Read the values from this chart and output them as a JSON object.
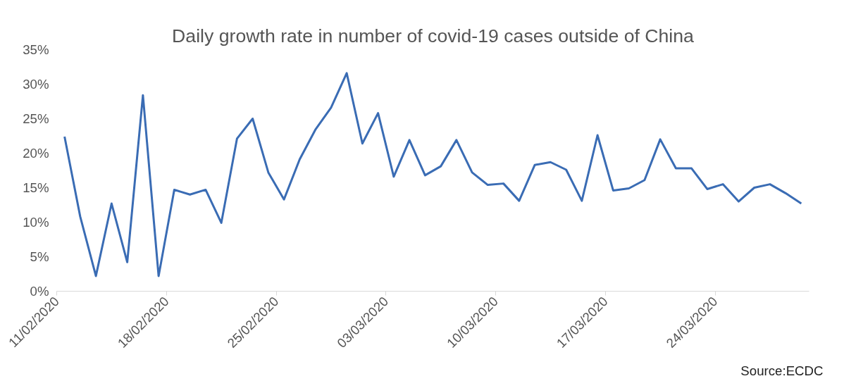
{
  "chart_data": {
    "type": "line",
    "title": "Daily growth rate in number of covid-19 cases outside of China",
    "x": [
      "2020-02-11T12:00",
      "2020-02-12T12:00",
      "2020-02-13T12:00",
      "2020-02-14T12:00",
      "2020-02-15T12:00",
      "2020-02-16T12:00",
      "2020-02-17T12:00",
      "2020-02-18T12:00",
      "2020-02-19T12:00",
      "2020-02-20T12:00",
      "2020-02-21T12:00",
      "2020-02-22T12:00",
      "2020-02-23T12:00",
      "2020-02-24T12:00",
      "2020-02-25T12:00",
      "2020-02-26T12:00",
      "2020-02-27T12:00",
      "2020-02-28T12:00",
      "2020-02-29T12:00",
      "2020-03-01T12:00",
      "2020-03-02T12:00",
      "2020-03-03T12:00",
      "2020-03-04T12:00",
      "2020-03-05T12:00",
      "2020-03-06T12:00",
      "2020-03-07T12:00",
      "2020-03-08T12:00",
      "2020-03-09T12:00",
      "2020-03-10T12:00",
      "2020-03-11T12:00",
      "2020-03-12T12:00",
      "2020-03-13T12:00",
      "2020-03-14T12:00",
      "2020-03-15T12:00",
      "2020-03-16T12:00",
      "2020-03-17T12:00",
      "2020-03-18T12:00",
      "2020-03-19T12:00",
      "2020-03-20T12:00",
      "2020-03-21T12:00",
      "2020-03-22T12:00",
      "2020-03-23T12:00",
      "2020-03-24T12:00",
      "2020-03-25T12:00",
      "2020-03-26T12:00",
      "2020-03-27T12:00",
      "2020-03-28T12:00",
      "2020-03-29T12:00"
    ],
    "series": [
      {
        "color": "#3a6cb4",
        "values": [
          22.4,
          10.8,
          2.2,
          12.7,
          4.2,
          28.4,
          2.2,
          14.7,
          14.0,
          14.7,
          9.9,
          22.1,
          25.0,
          17.2,
          13.3,
          19.1,
          23.4,
          26.6,
          31.6,
          21.4,
          25.8,
          16.6,
          21.9,
          16.8,
          18.1,
          21.9,
          17.2,
          15.4,
          15.6,
          13.1,
          18.3,
          18.7,
          17.6,
          13.1,
          22.6,
          14.6,
          14.9,
          16.1,
          22.0,
          17.8,
          17.8,
          14.8,
          15.5,
          13.0,
          15.0,
          15.5,
          14.2,
          12.7
        ]
      }
    ],
    "xlim": [
      "2020-02-11",
      "2020-03-30"
    ],
    "xticks": [
      {
        "value": "2020-02-11",
        "label": "11/02/2020"
      },
      {
        "value": "2020-02-18",
        "label": "18/02/2020"
      },
      {
        "value": "2020-02-25",
        "label": "25/02/2020"
      },
      {
        "value": "2020-03-03",
        "label": "03/03/2020"
      },
      {
        "value": "2020-03-10",
        "label": "10/03/2020"
      },
      {
        "value": "2020-03-17",
        "label": "17/03/2020"
      },
      {
        "value": "2020-03-24",
        "label": "24/03/2020"
      }
    ],
    "ylim": [
      0,
      35
    ],
    "yticks": [
      {
        "value": 0,
        "label": "0%"
      },
      {
        "value": 5,
        "label": "5%"
      },
      {
        "value": 10,
        "label": "10%"
      },
      {
        "value": 15,
        "label": "15%"
      },
      {
        "value": 20,
        "label": "20%"
      },
      {
        "value": 25,
        "label": "25%"
      },
      {
        "value": 30,
        "label": "30%"
      },
      {
        "value": 35,
        "label": "35%"
      }
    ],
    "grid": false,
    "marker": "none",
    "line_style": "solid",
    "annotations": [
      "Source:ECDC"
    ]
  }
}
